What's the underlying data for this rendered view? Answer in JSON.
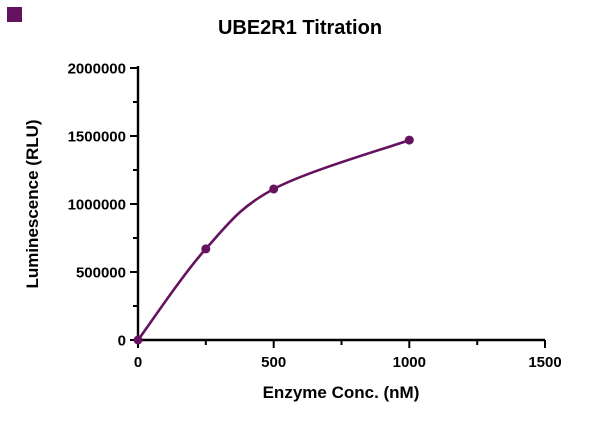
{
  "accent_color": "#65125f",
  "chart_data": {
    "type": "scatter",
    "title": "UBE2R1 Titration",
    "xlabel": "Enzyme Conc. (nM)",
    "ylabel": "Luminescence (RLU)",
    "x": [
      0,
      250,
      500,
      1000
    ],
    "y": [
      0,
      670000,
      1110000,
      1470000
    ],
    "xlim": [
      0,
      1500
    ],
    "ylim": [
      0,
      2000000
    ],
    "x_major_ticks": [
      0,
      500,
      1000,
      1500
    ],
    "x_minor_step": 250,
    "y_major_ticks": [
      0,
      500000,
      1000000,
      1500000,
      2000000
    ],
    "y_minor_step": 250000,
    "line_color": "#65125f",
    "marker_color": "#65125f",
    "marker": "circle",
    "grid": false,
    "legend": "none",
    "fit": "smooth saturation curve through points, ending at last data point"
  }
}
